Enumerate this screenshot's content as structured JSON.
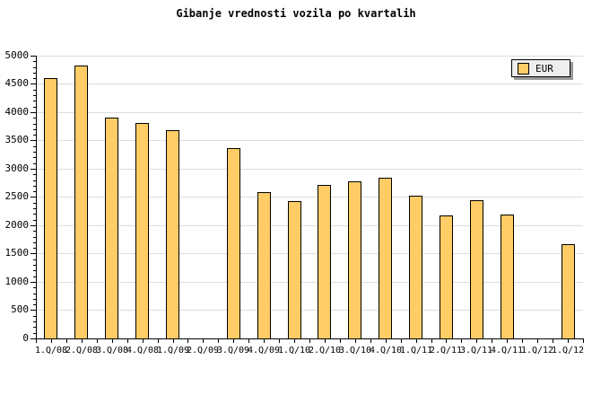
{
  "chart_data": {
    "type": "bar",
    "title": "Gibanje vrednosti vozila po kvartalih",
    "series_name": "EUR",
    "categories": [
      "1.Q/08",
      "2.Q/08",
      "3.Q/08",
      "4.Q/08",
      "1.Q/09",
      "2.Q/09",
      "3.Q/09",
      "4.Q/09",
      "1.Q/10",
      "2.Q/10",
      "3.Q/10",
      "4.Q/10",
      "1.Q/11",
      "2.Q/11",
      "3.Q/11",
      "4.Q/11",
      "1.Q/12",
      "1.Q/12"
    ],
    "values": [
      4600,
      4820,
      3900,
      3810,
      3690,
      null,
      3360,
      2590,
      2430,
      2710,
      2770,
      2840,
      2520,
      2180,
      2440,
      2190,
      null,
      1660
    ],
    "xlabel": "",
    "ylabel": "",
    "ylim": [
      0,
      5000
    ],
    "ytick_step": 500,
    "ytick_minor_step": 100,
    "ytick_labels": [
      "0",
      "500",
      "1000",
      "1500",
      "2000",
      "2500",
      "3000",
      "3500",
      "4000",
      "4500",
      "5000"
    ],
    "grid": true,
    "legend_position": "top-right"
  },
  "colors": {
    "bar_fill": "#ffcc66",
    "bar_border": "#000000",
    "grid": "#dddddd",
    "axis": "#000000",
    "legend_bg": "#eeeeee",
    "legend_shadow": "#999999",
    "background": "#ffffff"
  }
}
